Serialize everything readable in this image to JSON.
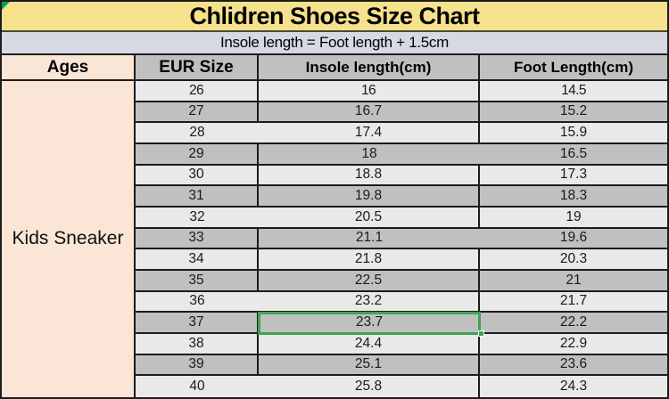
{
  "title": "Chlidren Shoes Size Chart",
  "subtitle": "Insole length = Foot length + 1.5cm",
  "table": {
    "headers": {
      "ages": "Ages",
      "eur": "EUR Size",
      "insole": "Insole length(cm)",
      "foot": "Foot Length(cm)"
    },
    "ages_value": "Kids Sneaker",
    "rows": [
      {
        "eur": "26",
        "insole": "16",
        "foot": "14.5"
      },
      {
        "eur": "27",
        "insole": "16.7",
        "foot": "15.2"
      },
      {
        "eur": "28",
        "insole": "17.4",
        "foot": "15.9"
      },
      {
        "eur": "29",
        "insole": "18",
        "foot": "16.5"
      },
      {
        "eur": "30",
        "insole": "18.8",
        "foot": "17.3"
      },
      {
        "eur": "31",
        "insole": "19.8",
        "foot": "18.3"
      },
      {
        "eur": "32",
        "insole": "20.5",
        "foot": "19"
      },
      {
        "eur": "33",
        "insole": "21.1",
        "foot": "19.6"
      },
      {
        "eur": "34",
        "insole": "21.8",
        "foot": "20.3"
      },
      {
        "eur": "35",
        "insole": "22.5",
        "foot": "21"
      },
      {
        "eur": "36",
        "insole": "23.2",
        "foot": "21.7"
      },
      {
        "eur": "37",
        "insole": "23.7",
        "foot": "22.2"
      },
      {
        "eur": "38",
        "insole": "24.4",
        "foot": "22.9"
      },
      {
        "eur": "39",
        "insole": "25.1",
        "foot": "23.6"
      },
      {
        "eur": "40",
        "insole": "25.8",
        "foot": "24.3"
      }
    ],
    "selection": {
      "row_eur": "37",
      "column": "insole",
      "value": "23.7"
    }
  },
  "colors": {
    "title_bg": "#F6E28C",
    "subtitle_bg": "#D6D9E3",
    "header_bg": "#C0C0C0",
    "ages_bg": "#FBE5D6",
    "row_light": "#E9E9E9",
    "row_dark": "#C0C0C0",
    "border": "#1C1C1C",
    "selection_green": "#42A254",
    "corner_marker_green": "#00A550"
  }
}
